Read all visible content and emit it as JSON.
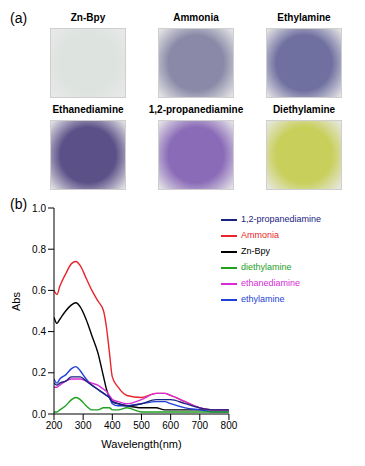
{
  "panel_a": {
    "label": "(a)",
    "photos": [
      {
        "label": "Zn-Bpy",
        "color": "#dde3df"
      },
      {
        "label": "Ammonia",
        "color": "#8a8aa8"
      },
      {
        "label": "Ethylamine",
        "color": "#6f6fa0"
      },
      {
        "label": "Ethanediamine",
        "color": "#5c5088"
      },
      {
        "label": "1,2-propanediamine",
        "color": "#8a6bb8"
      },
      {
        "label": "Diethylamine",
        "color": "#c8cf5a"
      }
    ]
  },
  "panel_b": {
    "label": "(b)"
  },
  "chart_data": {
    "type": "line",
    "x_label": "Wavelength(nm)",
    "y_label": "Abs",
    "x": [
      200,
      210,
      220,
      240,
      260,
      275,
      290,
      310,
      330,
      350,
      370,
      380,
      390,
      400,
      420,
      450,
      500,
      550,
      580,
      600,
      650,
      700,
      750,
      800
    ],
    "series": [
      {
        "name": "Zn-Bpy",
        "color": "#000000",
        "values": [
          0.47,
          0.44,
          0.46,
          0.5,
          0.53,
          0.54,
          0.52,
          0.46,
          0.38,
          0.3,
          0.18,
          0.12,
          0.08,
          0.06,
          0.05,
          0.04,
          0.03,
          0.03,
          0.02,
          0.02,
          0.02,
          0.02,
          0.02,
          0.02
        ]
      },
      {
        "name": "Ammonia",
        "color": "#e8252a",
        "values": [
          0.6,
          0.58,
          0.62,
          0.68,
          0.73,
          0.74,
          0.72,
          0.66,
          0.6,
          0.55,
          0.5,
          0.42,
          0.3,
          0.18,
          0.13,
          0.09,
          0.08,
          0.1,
          0.1,
          0.09,
          0.06,
          0.03,
          0.02,
          0.02
        ]
      },
      {
        "name": "ethylamine",
        "color": "#1f3fd6",
        "values": [
          0.17,
          0.15,
          0.17,
          0.19,
          0.22,
          0.23,
          0.21,
          0.17,
          0.14,
          0.12,
          0.1,
          0.09,
          0.08,
          0.05,
          0.04,
          0.04,
          0.05,
          0.06,
          0.06,
          0.05,
          0.03,
          0.02,
          0.01,
          0.01
        ]
      },
      {
        "name": "ethanediamine",
        "color": "#d62bd6",
        "values": [
          0.13,
          0.13,
          0.14,
          0.16,
          0.17,
          0.17,
          0.17,
          0.16,
          0.15,
          0.14,
          0.12,
          0.11,
          0.09,
          0.07,
          0.06,
          0.05,
          0.07,
          0.1,
          0.1,
          0.09,
          0.06,
          0.03,
          0.02,
          0.02
        ]
      },
      {
        "name": "diethylamine",
        "color": "#1fa01f",
        "values": [
          0.01,
          0.01,
          0.02,
          0.04,
          0.07,
          0.08,
          0.07,
          0.04,
          0.02,
          0.02,
          0.03,
          0.03,
          0.03,
          0.02,
          0.02,
          0.03,
          0.01,
          0.01,
          0.01,
          0.01,
          0.01,
          0.01,
          0.01,
          0.01
        ]
      },
      {
        "name": "1,2-propanediamine",
        "color": "#1a237e",
        "values": [
          0.15,
          0.14,
          0.15,
          0.16,
          0.18,
          0.18,
          0.18,
          0.16,
          0.14,
          0.12,
          0.1,
          0.09,
          0.08,
          0.06,
          0.05,
          0.04,
          0.05,
          0.07,
          0.07,
          0.07,
          0.05,
          0.03,
          0.02,
          0.02
        ]
      }
    ],
    "xlim": [
      200,
      800
    ],
    "xticks": [
      200,
      300,
      400,
      500,
      600,
      700,
      800
    ],
    "ylim": [
      0,
      1
    ],
    "yticks": [
      {
        "value": 0,
        "label": "0.0"
      },
      {
        "value": 0.2,
        "label": "0.2"
      },
      {
        "value": 0.4,
        "label": "0.4"
      },
      {
        "value": 0.6,
        "label": "0.6"
      },
      {
        "value": 0.8,
        "label": "0.8"
      },
      {
        "value": 1,
        "label": "1.0"
      }
    ],
    "grid": false,
    "legend": "upper right",
    "marker": "none",
    "line_style": "solid"
  }
}
